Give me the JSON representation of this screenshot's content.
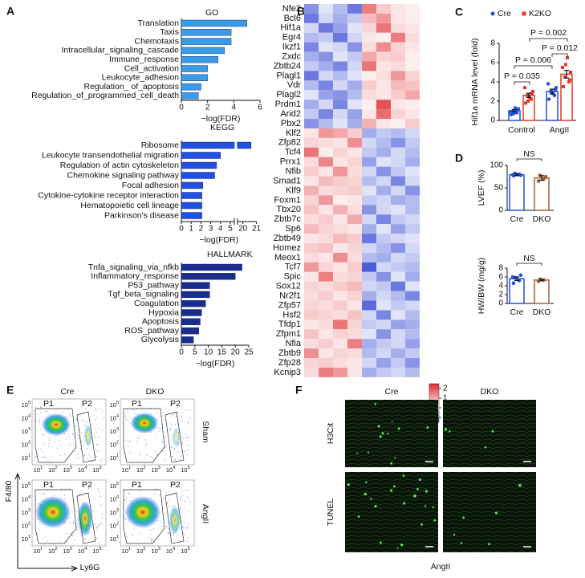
{
  "panel_labels": [
    "A",
    "B",
    "C",
    "D",
    "E",
    "F"
  ],
  "chart_data": [
    {
      "type": "hbar",
      "title": "GO",
      "categories": [
        "Translation",
        "Taxis",
        "Chemotaxis",
        "Intracellular_signaling_cascade",
        "Immune_response",
        "Cell_activation",
        "Leukocyte_adhesion",
        "Regulation_ of_apoptosis",
        "Regulation_of_programmed_cell_death"
      ],
      "values": [
        5.0,
        3.8,
        3.8,
        3.3,
        2.8,
        2.0,
        2.0,
        1.5,
        1.3
      ],
      "color": "#3a9be6",
      "xlim": [
        0,
        6
      ],
      "xticks": [
        0,
        2,
        4,
        6
      ],
      "xlabel": "−log(FDR)"
    },
    {
      "type": "hbar",
      "title": "KEGG",
      "categories": [
        "Ribosome",
        "Leukocyte transendothelial migration",
        "Regulation of actin cytoskeleton",
        "Chemokine signaling pathway",
        "Focal adhesion",
        "Cytokine-cytokine receptor interaction",
        "Hematopoietic cell lineage",
        "Parkinson's disease"
      ],
      "values": [
        20.6,
        4.0,
        3.6,
        3.4,
        2.2,
        2.1,
        2.1,
        2.1
      ],
      "color": "#2250e0",
      "xlim": [
        0,
        21
      ],
      "xticks": [
        0,
        1,
        2,
        3,
        4,
        5,
        20,
        21
      ],
      "axis_break": [
        5.4,
        19.6
      ],
      "xlabel": "−log(FDR)"
    },
    {
      "type": "hbar",
      "title": "HALLMARK",
      "categories": [
        "Tnfa_signaling_via_nfkb",
        "Inflammatory_response",
        "P53_pathway",
        "Tgf_beta_signaling",
        "Coagulation",
        "Hypoxia",
        "Apoptosis",
        "ROS_pathway",
        "Glycolysis"
      ],
      "values": [
        22.5,
        20.0,
        10.5,
        10.5,
        9.0,
        7.5,
        7.0,
        6.5,
        4.5
      ],
      "color": "#1b2d8c",
      "xlim": [
        0,
        25
      ],
      "xticks": [
        0,
        5,
        10,
        15,
        20,
        25
      ],
      "xlabel": "−log(FDR)"
    },
    {
      "type": "heatmap",
      "rows": [
        "Nfe2",
        "Bcl6",
        "Hif1a",
        "Egr4",
        "Ikzf1",
        "Zxdc",
        "Zbtb24",
        "Plagl1",
        "Vdr",
        "Plagl2",
        "Prdm1",
        "Arid2",
        "Pbx2",
        "Klf2",
        "Zfp82",
        "Tcf4",
        "Prrx1",
        "Nfib",
        "Smad1",
        "Klf9",
        "Foxm1",
        "Tbx20",
        "Zbtb7c",
        "Sp6",
        "Zbtb49",
        "Homez",
        "Meox1",
        "Tcf7",
        "Spic",
        "Sox12",
        "Nr2f1",
        "Zfp57",
        "Hsf2",
        "Tfdp1",
        "Zfpm1",
        "Nfia",
        "Zbtb9",
        "Zfp28",
        "Kcnip3"
      ],
      "values": [
        [
          -0.8,
          -0.2,
          -0.5,
          -1.0,
          1.5,
          0.6,
          0.3,
          0.2
        ],
        [
          -1.0,
          -0.3,
          -0.6,
          -0.4,
          0.8,
          1.2,
          0.3,
          0.2
        ],
        [
          -0.3,
          -1.0,
          -0.7,
          -0.2,
          0.5,
          1.6,
          0.4,
          0.3
        ],
        [
          -0.5,
          -0.4,
          -1.0,
          -0.3,
          0.3,
          0.2,
          1.5,
          0.4
        ],
        [
          -0.9,
          -0.2,
          -0.3,
          -0.8,
          0.4,
          1.3,
          0.5,
          0.3
        ],
        [
          -0.6,
          -0.8,
          -0.2,
          -0.4,
          1.0,
          0.5,
          0.6,
          0.2
        ],
        [
          -0.4,
          -0.6,
          -0.9,
          -0.3,
          1.6,
          0.3,
          0.4,
          0.2
        ],
        [
          -1.0,
          -0.3,
          -0.5,
          -0.2,
          0.2,
          0.4,
          1.2,
          0.5
        ],
        [
          -0.5,
          -0.9,
          -0.3,
          -0.6,
          0.6,
          0.3,
          0.8,
          0.7
        ],
        [
          -0.2,
          -0.7,
          -0.8,
          -0.5,
          0.4,
          0.3,
          0.6,
          1.0
        ],
        [
          -0.6,
          -0.3,
          -0.9,
          -0.2,
          0.2,
          2.0,
          0.3,
          0.2
        ],
        [
          -0.4,
          -0.9,
          -0.3,
          -0.7,
          0.3,
          1.7,
          0.5,
          0.3
        ],
        [
          -0.8,
          -0.5,
          -0.2,
          -0.6,
          0.9,
          0.3,
          0.2,
          0.6
        ],
        [
          0.3,
          1.2,
          1.0,
          0.6,
          -0.6,
          -0.4,
          -0.5,
          -0.3
        ],
        [
          0.5,
          0.4,
          0.3,
          1.3,
          -0.3,
          -0.5,
          -0.8,
          -0.4
        ],
        [
          1.6,
          0.2,
          0.5,
          0.3,
          -0.4,
          -0.6,
          -0.3,
          -0.5
        ],
        [
          0.4,
          1.4,
          0.3,
          0.5,
          -0.7,
          -0.2,
          -0.3,
          -0.6
        ],
        [
          0.6,
          0.3,
          1.2,
          0.4,
          -0.3,
          -0.8,
          -0.4,
          -0.2
        ],
        [
          0.3,
          0.8,
          0.6,
          0.5,
          -0.5,
          -0.3,
          -0.9,
          -0.3
        ],
        [
          0.9,
          0.4,
          0.5,
          0.6,
          -0.2,
          -0.6,
          -0.3,
          -0.8
        ],
        [
          0.5,
          1.2,
          0.2,
          0.3,
          -0.4,
          -0.3,
          -0.6,
          -0.5
        ],
        [
          0.7,
          0.3,
          0.9,
          0.4,
          -0.8,
          -0.3,
          -0.2,
          -0.5
        ],
        [
          0.4,
          0.6,
          0.3,
          1.0,
          -0.3,
          -0.9,
          -0.4,
          -0.3
        ],
        [
          0.8,
          0.5,
          0.4,
          0.3,
          -0.6,
          -0.2,
          -0.7,
          -0.4
        ],
        [
          0.3,
          0.4,
          0.8,
          0.6,
          -1.0,
          -0.4,
          -0.3,
          -0.2
        ],
        [
          0.6,
          0.7,
          0.3,
          0.5,
          -0.3,
          -0.5,
          -0.8,
          -0.3
        ],
        [
          0.4,
          0.3,
          1.3,
          0.4,
          -0.5,
          -0.6,
          -0.3,
          -0.4
        ],
        [
          1.2,
          0.5,
          0.3,
          0.6,
          -1.2,
          -0.3,
          -0.4,
          -0.5
        ],
        [
          0.3,
          1.5,
          0.4,
          0.5,
          -0.4,
          -0.8,
          -0.2,
          -0.6
        ],
        [
          0.5,
          0.4,
          0.6,
          0.8,
          -0.3,
          -0.4,
          -1.0,
          -0.2
        ],
        [
          0.4,
          0.6,
          0.3,
          0.5,
          -0.6,
          -0.3,
          -0.5,
          -0.9
        ],
        [
          0.5,
          0.4,
          0.6,
          0.3,
          -1.1,
          -0.2,
          -0.4,
          -0.3
        ],
        [
          0.6,
          0.5,
          0.4,
          0.7,
          -0.3,
          -0.9,
          -0.2,
          -0.5
        ],
        [
          0.3,
          0.4,
          1.6,
          0.5,
          -0.4,
          -0.3,
          -0.7,
          -0.6
        ],
        [
          0.7,
          0.3,
          0.5,
          0.4,
          -0.2,
          -0.8,
          -0.3,
          -0.5
        ],
        [
          0.4,
          0.6,
          0.3,
          1.5,
          -0.6,
          -0.4,
          -0.3,
          -0.7
        ],
        [
          1.3,
          0.3,
          0.5,
          0.4,
          -0.5,
          -0.3,
          -0.6,
          -0.4
        ],
        [
          0.5,
          0.6,
          0.4,
          0.3,
          -0.3,
          -0.7,
          -0.4,
          -0.8
        ],
        [
          0.4,
          1.5,
          1.2,
          0.3,
          -0.6,
          -0.4,
          -0.3,
          -0.5
        ]
      ],
      "colors": [
        "#1f35cf",
        "#ffffff",
        "#e0262c"
      ],
      "clim": [
        -1.5,
        2.5
      ],
      "cticks": [
        2,
        1,
        0,
        {
          "value": -1,
          "label": "−1"
        }
      ]
    },
    {
      "type": "grouped_dotbar",
      "ylabel": "Hif1a mRNA level (fold)",
      "categories": [
        "Control",
        "AngII"
      ],
      "ylim": [
        0,
        8
      ],
      "yticks": [
        0,
        2,
        4,
        6,
        8
      ],
      "series": [
        {
          "name": "Cre",
          "color": "#1f4fe0",
          "values": [
            1.0,
            3.0
          ],
          "errors": [
            0.12,
            0.25
          ],
          "points": [
            [
              0.6,
              0.8,
              1.0,
              1.2,
              0.9,
              1.3,
              1.1,
              0.7
            ],
            [
              2.2,
              2.6,
              3.0,
              3.4,
              3.8,
              2.8,
              3.2
            ]
          ]
        },
        {
          "name": "K2KO",
          "color": "#e8372a",
          "values": [
            2.6,
            4.8
          ],
          "errors": [
            0.22,
            0.4
          ],
          "points": [
            [
              1.8,
              2.2,
              2.6,
              3.0,
              3.4,
              2.4,
              2.8,
              2.0
            ],
            [
              3.5,
              4.0,
              4.5,
              5.0,
              5.5,
              6.5,
              4.2,
              5.8
            ]
          ]
        }
      ],
      "annotations": [
        "P = 0.035",
        "P = 0.006",
        "P = 0.012",
        "P = 0.002"
      ]
    },
    {
      "type": "dotbar",
      "ylabel": "LVEF (%)",
      "categories": [
        "Cre",
        "DKO"
      ],
      "values": [
        79,
        72
      ],
      "errors": [
        2,
        5
      ],
      "colors": [
        "#1f4fe0",
        "#a0623a"
      ],
      "points": [
        [
          77,
          80,
          82,
          78,
          79
        ],
        [
          65,
          70,
          78,
          75
        ]
      ],
      "ylim": [
        0,
        100
      ],
      "yticks": [
        0,
        50,
        100
      ],
      "annotation": "NS"
    },
    {
      "type": "dotbar",
      "ylabel": "HW/BW (mg/g)",
      "categories": [
        "Cre",
        "DKO"
      ],
      "values": [
        5.6,
        5.3
      ],
      "errors": [
        0.4,
        0.2
      ],
      "colors": [
        "#1f4fe0",
        "#a0623a"
      ],
      "points": [
        [
          4.6,
          5.2,
          5.8,
          6.4,
          6.0
        ],
        [
          5.0,
          5.3,
          5.5
        ]
      ],
      "ylim": [
        0,
        8
      ],
      "yticks": [
        0,
        2,
        4,
        6,
        8
      ],
      "annotation": "NS"
    }
  ],
  "flow": {
    "columns": [
      "Cre",
      "DKO"
    ],
    "rows": [
      "Sham",
      "AngII"
    ],
    "gates": [
      "P1",
      "P2"
    ],
    "ylabel": "F4/80",
    "xlabel": "Ly6G",
    "tick_base": "10",
    "tick_exponents": [
      1,
      2,
      3,
      4,
      5
    ]
  },
  "microscopy": {
    "columns": [
      "Cre",
      "DKO"
    ],
    "rows": [
      "H3Cit",
      "TUNEL"
    ],
    "condition": "AngII"
  }
}
